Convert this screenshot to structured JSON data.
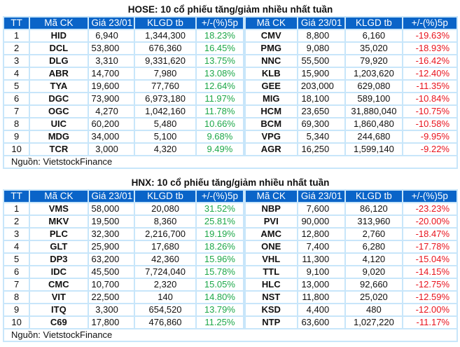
{
  "colors": {
    "header_bg": "#0a64c8",
    "grid": "#c8e6fa",
    "up": "#1ea84a",
    "down": "#e8141e"
  },
  "headers": [
    "TT",
    "Mã CK",
    "Giá 23/01",
    "KLGD tb",
    "+/-(%)5p",
    "Mã CK",
    "Giá 23/01",
    "KLGD tb",
    "+/-(%)5p"
  ],
  "tables": [
    {
      "title": "HOSE: 10 cổ phiếu tăng/giảm nhiều nhất tuần",
      "source": "Nguồn: VietstockFinance",
      "rows": [
        [
          "1",
          "HID",
          "6,940",
          "1,344,300",
          "18.23%",
          "CMV",
          "8,800",
          "6,160",
          "-19.63%"
        ],
        [
          "2",
          "DCL",
          "53,800",
          "676,360",
          "16.45%",
          "PMG",
          "9,080",
          "35,020",
          "-18.93%"
        ],
        [
          "3",
          "DLG",
          "3,310",
          "9,331,620",
          "13.75%",
          "NNC",
          "55,500",
          "79,920",
          "-16.42%"
        ],
        [
          "4",
          "ABR",
          "14,700",
          "7,980",
          "13.08%",
          "KLB",
          "15,900",
          "1,203,620",
          "-12.40%"
        ],
        [
          "5",
          "TYA",
          "19,600",
          "77,760",
          "12.64%",
          "GEE",
          "203,000",
          "629,080",
          "-11.35%"
        ],
        [
          "6",
          "DGC",
          "73,900",
          "6,973,180",
          "11.97%",
          "MIG",
          "18,100",
          "589,100",
          "-10.84%"
        ],
        [
          "7",
          "OGC",
          "4,270",
          "1,042,160",
          "11.78%",
          "HCM",
          "23,650",
          "31,880,040",
          "-10.75%"
        ],
        [
          "8",
          "UIC",
          "60,200",
          "5,480",
          "10.66%",
          "BCM",
          "69,300",
          "1,860,480",
          "-10.58%"
        ],
        [
          "9",
          "MDG",
          "34,000",
          "5,100",
          "9.68%",
          "VPG",
          "5,340",
          "244,680",
          "-9.95%"
        ],
        [
          "10",
          "TCR",
          "3,000",
          "4,320",
          "9.49%",
          "AGR",
          "16,250",
          "1,599,140",
          "-9.22%"
        ]
      ]
    },
    {
      "title": "HNX: 10 cổ phiếu tăng/giảm nhiều nhất tuần",
      "source": "Nguồn: VietstockFinance",
      "rows": [
        [
          "1",
          "VMS",
          "58,000",
          "20,080",
          "31.52%",
          "NBP",
          "7,600",
          "86,120",
          "-23.23%"
        ],
        [
          "2",
          "MKV",
          "19,500",
          "8,360",
          "25.81%",
          "PVI",
          "90,000",
          "313,960",
          "-20.00%"
        ],
        [
          "3",
          "PLC",
          "32,300",
          "2,216,700",
          "19.19%",
          "AMC",
          "12,800",
          "2,760",
          "-18.47%"
        ],
        [
          "4",
          "GLT",
          "25,900",
          "17,680",
          "18.26%",
          "ONE",
          "7,400",
          "6,280",
          "-17.78%"
        ],
        [
          "5",
          "DP3",
          "63,200",
          "42,360",
          "15.96%",
          "VHL",
          "11,300",
          "4,120",
          "-15.04%"
        ],
        [
          "6",
          "IDC",
          "45,500",
          "7,724,040",
          "15.78%",
          "TTL",
          "9,100",
          "9,020",
          "-14.15%"
        ],
        [
          "7",
          "CMC",
          "10,700",
          "2,320",
          "15.05%",
          "HLC",
          "13,000",
          "92,660",
          "-12.75%"
        ],
        [
          "8",
          "VIT",
          "22,500",
          "140",
          "14.80%",
          "NST",
          "11,800",
          "25,020",
          "-12.59%"
        ],
        [
          "9",
          "ITQ",
          "3,300",
          "654,520",
          "13.79%",
          "KSD",
          "4,400",
          "480",
          "-12.00%"
        ],
        [
          "10",
          "C69",
          "17,800",
          "476,860",
          "11.25%",
          "NTP",
          "63,600",
          "1,027,220",
          "-11.17%"
        ]
      ]
    }
  ]
}
